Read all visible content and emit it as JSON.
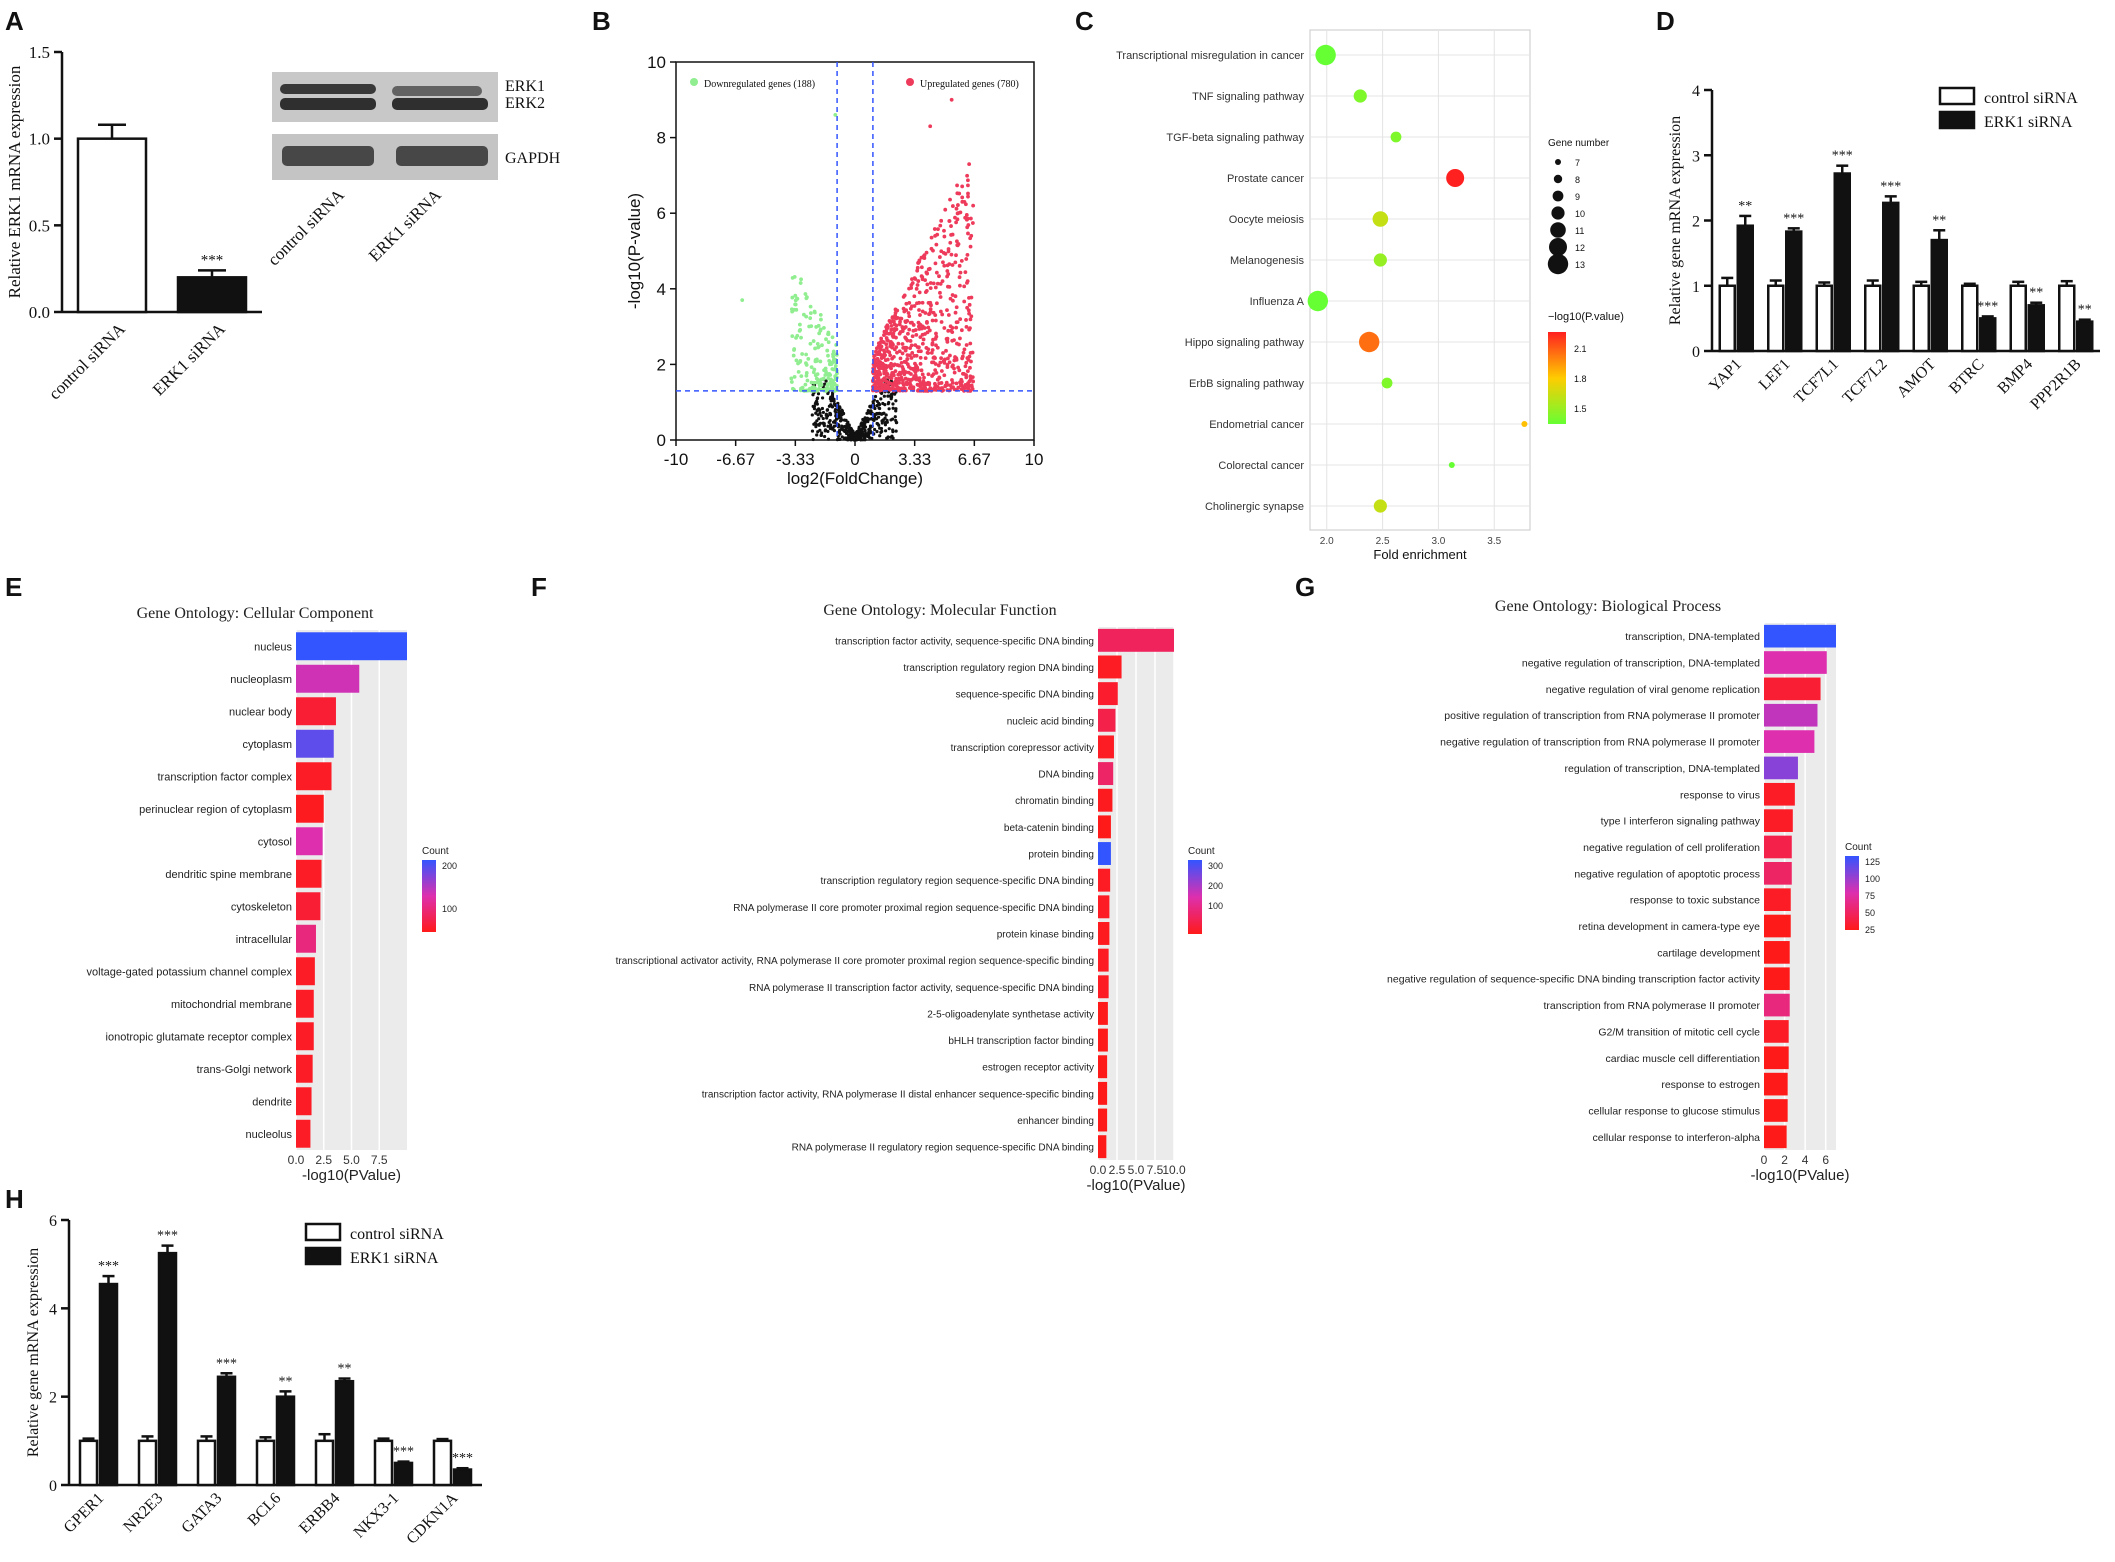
{
  "panel_letters": [
    "A",
    "B",
    "C",
    "D",
    "E",
    "F",
    "G",
    "H"
  ],
  "chart_data": [
    {
      "id": "A",
      "type": "bar",
      "ylabel": "Relative ERK1 mRNA expression",
      "ylim": [
        0,
        1.5
      ],
      "yticks": [
        "0.0",
        "0.5",
        "1.0",
        "1.5"
      ],
      "categories": [
        "control siRNA",
        "ERK1 siRNA"
      ],
      "values": [
        1.0,
        0.2
      ],
      "errors": [
        0.08,
        0.04
      ],
      "fills": [
        "#ffffff",
        "#111111"
      ],
      "significance": [
        "",
        "***"
      ],
      "western_blot": {
        "bands": [
          "ERK1",
          "ERK2",
          "GAPDH"
        ],
        "lanes": [
          "control siRNA",
          "ERK1 siRNA"
        ]
      }
    },
    {
      "id": "B",
      "type": "scatter",
      "xlabel": "log2(FoldChange)",
      "ylabel": "-log10(P-value)",
      "xlim": [
        -10,
        10
      ],
      "ylim": [
        0,
        10
      ],
      "xticks": [
        "-10",
        "-6.67",
        "-3.33",
        "0",
        "3.33",
        "6.67",
        "10"
      ],
      "yticks": [
        "0",
        "2",
        "4",
        "6",
        "8",
        "10"
      ],
      "legend": [
        {
          "label": "Downregulated genes (188)",
          "color": "#90ee90"
        },
        {
          "label": "Upregulated genes (780)",
          "color": "#ee3b5b"
        }
      ],
      "thresholds": {
        "fc": 1,
        "p": 1.3
      }
    },
    {
      "id": "C",
      "type": "scatter",
      "xlabel": "Fold enrichment",
      "xlim": [
        1.85,
        3.82
      ],
      "xticks": [
        "2.0",
        "2.5",
        "3.0",
        "3.5"
      ],
      "pathways": [
        {
          "name": "Transcriptional misregulation in cancer",
          "x": 1.99,
          "n": 13,
          "logp": 1.5
        },
        {
          "name": "TNF signaling pathway",
          "x": 2.3,
          "n": 10,
          "logp": 1.55
        },
        {
          "name": "TGF-beta signaling pathway",
          "x": 2.62,
          "n": 9,
          "logp": 1.55
        },
        {
          "name": "Prostate cancer",
          "x": 3.15,
          "n": 12,
          "logp": 2.15
        },
        {
          "name": "Oocyte meiosis",
          "x": 2.48,
          "n": 11,
          "logp": 1.7
        },
        {
          "name": "Melanogenesis",
          "x": 2.48,
          "n": 10,
          "logp": 1.6
        },
        {
          "name": "Influenza A",
          "x": 1.92,
          "n": 13,
          "logp": 1.5
        },
        {
          "name": "Hippo signaling pathway",
          "x": 2.38,
          "n": 13,
          "logp": 2.0
        },
        {
          "name": "ErbB signaling pathway",
          "x": 2.54,
          "n": 9,
          "logp": 1.55
        },
        {
          "name": "Endometrial cancer",
          "x": 3.77,
          "n": 7,
          "logp": 1.85
        },
        {
          "name": "Colorectal cancer",
          "x": 3.12,
          "n": 7,
          "logp": 1.5
        },
        {
          "name": "Cholinergic synapse",
          "x": 2.48,
          "n": 10,
          "logp": 1.7
        }
      ],
      "size_legend_title": "Gene number",
      "size_legend": [
        "7",
        "8",
        "9",
        "10",
        "11",
        "12",
        "13"
      ],
      "color_legend_title": "−log10(P.value)",
      "color_ticks": [
        "2.1",
        "1.8",
        "1.5"
      ]
    },
    {
      "id": "D",
      "type": "bar",
      "ylabel": "Relative gene mRNA expression",
      "ylim": [
        0,
        4
      ],
      "yticks": [
        "0",
        "1",
        "2",
        "3",
        "4"
      ],
      "categories": [
        "YAP1",
        "LEF1",
        "TCF7L1",
        "TCF7L2",
        "AMOT",
        "BTRC",
        "BMP4",
        "PPP2R1B"
      ],
      "series": [
        {
          "name": "control siRNA",
          "values": [
            1.0,
            1.0,
            1.0,
            1.0,
            1.0,
            1.0,
            1.0,
            1.0
          ],
          "errors": [
            0.12,
            0.08,
            0.05,
            0.08,
            0.06,
            0.03,
            0.06,
            0.07
          ]
        },
        {
          "name": "ERK1 siRNA",
          "values": [
            1.92,
            1.83,
            2.72,
            2.27,
            1.7,
            0.5,
            0.7,
            0.45
          ],
          "errors": [
            0.15,
            0.05,
            0.12,
            0.1,
            0.15,
            0.03,
            0.04,
            0.03
          ]
        }
      ],
      "significance": [
        "**",
        "***",
        "***",
        "***",
        "**",
        "***",
        "**",
        "**"
      ]
    },
    {
      "id": "E",
      "type": "bar",
      "title": "Gene Ontology: Cellular Component",
      "xlabel": "-log10(PValue)",
      "xlim": [
        0,
        10
      ],
      "xticks": [
        "0.0",
        "2.5",
        "5.0",
        "7.5"
      ],
      "legend_title": "Count",
      "legend_ticks": [
        "200",
        "100"
      ],
      "categories": [
        "nucleus",
        "nucleoplasm",
        "nuclear body",
        "cytoplasm",
        "transcription factor complex",
        "perinuclear region of cytoplasm",
        "cytosol",
        "dendritic spine membrane",
        "cytoskeleton",
        "intracellular",
        "voltage-gated potassium channel complex",
        "mitochondrial membrane",
        "ionotropic glutamate receptor complex",
        "trans-Golgi network",
        "dendrite",
        "nucleolus"
      ],
      "values": [
        10.0,
        5.7,
        3.6,
        3.4,
        3.2,
        2.5,
        2.4,
        2.3,
        2.2,
        1.8,
        1.7,
        1.6,
        1.6,
        1.5,
        1.4,
        1.3
      ],
      "counts": [
        260,
        150,
        40,
        230,
        30,
        25,
        140,
        30,
        40,
        100,
        30,
        30,
        30,
        30,
        30,
        30
      ]
    },
    {
      "id": "F",
      "type": "bar",
      "title": "Gene Ontology: Molecular Function",
      "xlabel": "-log10(PValue)",
      "xlim": [
        0,
        10
      ],
      "xticks": [
        "0.0",
        "2.5",
        "5.0",
        "7.5",
        "10.0"
      ],
      "legend_title": "Count",
      "legend_ticks": [
        "300",
        "200",
        "100"
      ],
      "categories": [
        "transcription factor activity, sequence-specific DNA binding",
        "transcription regulatory region DNA binding",
        "sequence-specific DNA binding",
        "nucleic acid binding",
        "transcription corepressor activity",
        "DNA binding",
        "chromatin binding",
        "beta-catenin binding",
        "protein binding",
        "transcription regulatory region sequence-specific DNA binding",
        "RNA polymerase II core promoter proximal region sequence-specific DNA binding",
        "protein kinase binding",
        "transcriptional activator activity, RNA polymerase II core promoter proximal region sequence-specific binding",
        "RNA polymerase II transcription factor activity, sequence-specific DNA binding",
        "2-5-oligoadenylate synthetase activity",
        "bHLH transcription factor binding",
        "estrogen receptor activity",
        "transcription factor activity, RNA polymerase II distal enhancer sequence-specific binding",
        "enhancer binding",
        "RNA polymerase II regulatory region sequence-specific DNA binding"
      ],
      "values": [
        10.0,
        3.1,
        2.6,
        2.3,
        2.1,
        2.0,
        1.9,
        1.7,
        1.7,
        1.6,
        1.5,
        1.5,
        1.4,
        1.4,
        1.3,
        1.3,
        1.2,
        1.2,
        1.2,
        1.1
      ],
      "counts": [
        90,
        30,
        40,
        70,
        30,
        100,
        25,
        20,
        330,
        30,
        30,
        25,
        30,
        30,
        20,
        20,
        20,
        20,
        20,
        20
      ]
    },
    {
      "id": "G",
      "type": "bar",
      "title": "Gene Ontology: Biological Process",
      "xlabel": "-log10(PValue)",
      "xlim": [
        0,
        7
      ],
      "xticks": [
        "0",
        "2",
        "4",
        "6"
      ],
      "legend_title": "Count",
      "legend_ticks": [
        "125",
        "100",
        "75",
        "50",
        "25"
      ],
      "categories": [
        "transcription, DNA-templated",
        "negative regulation of transcription, DNA-templated",
        "negative regulation of viral genome replication",
        "positive regulation of transcription from RNA polymerase II promoter",
        "negative regulation of transcription from RNA polymerase II promoter",
        "regulation of transcription, DNA-templated",
        "response to virus",
        "type I interferon signaling pathway",
        "negative regulation of cell proliferation",
        "negative regulation of apoptotic process",
        "response to toxic substance",
        "retina development in camera-type eye",
        "cartilage development",
        "negative regulation of sequence-specific DNA binding transcription factor activity",
        "transcription from RNA polymerase II promoter",
        "G2/M transition of mitotic cell cycle",
        "cardiac muscle cell differentiation",
        "response to estrogen",
        "cellular response to glucose stimulus",
        "cellular response to interferon-alpha"
      ],
      "values": [
        7.0,
        6.1,
        5.5,
        5.2,
        4.9,
        3.3,
        3.0,
        2.8,
        2.7,
        2.7,
        2.6,
        2.6,
        2.5,
        2.5,
        2.5,
        2.4,
        2.4,
        2.3,
        2.3,
        2.2
      ],
      "counts": [
        130,
        70,
        20,
        80,
        70,
        100,
        15,
        15,
        30,
        40,
        15,
        10,
        10,
        10,
        50,
        15,
        10,
        10,
        10,
        10
      ]
    },
    {
      "id": "H",
      "type": "bar",
      "ylabel": "Relative gene mRNA expression",
      "ylim": [
        0,
        6
      ],
      "yticks": [
        "0",
        "2",
        "4",
        "6"
      ],
      "categories": [
        "GPER1",
        "NR2E3",
        "GATA3",
        "BCL6",
        "ERBB4",
        "NKX3-1",
        "CDKN1A"
      ],
      "series": [
        {
          "name": "control siRNA",
          "values": [
            1.0,
            1.0,
            1.0,
            1.0,
            1.0,
            1.0,
            1.0
          ],
          "errors": [
            0.05,
            0.1,
            0.1,
            0.08,
            0.15,
            0.05,
            0.04
          ]
        },
        {
          "name": "ERK1 siRNA",
          "values": [
            4.55,
            5.25,
            2.45,
            2.0,
            2.35,
            0.5,
            0.35
          ],
          "errors": [
            0.18,
            0.17,
            0.08,
            0.12,
            0.06,
            0.03,
            0.03
          ]
        }
      ],
      "significance": [
        "***",
        "***",
        "***",
        "**",
        "**",
        "***",
        "***"
      ]
    }
  ]
}
